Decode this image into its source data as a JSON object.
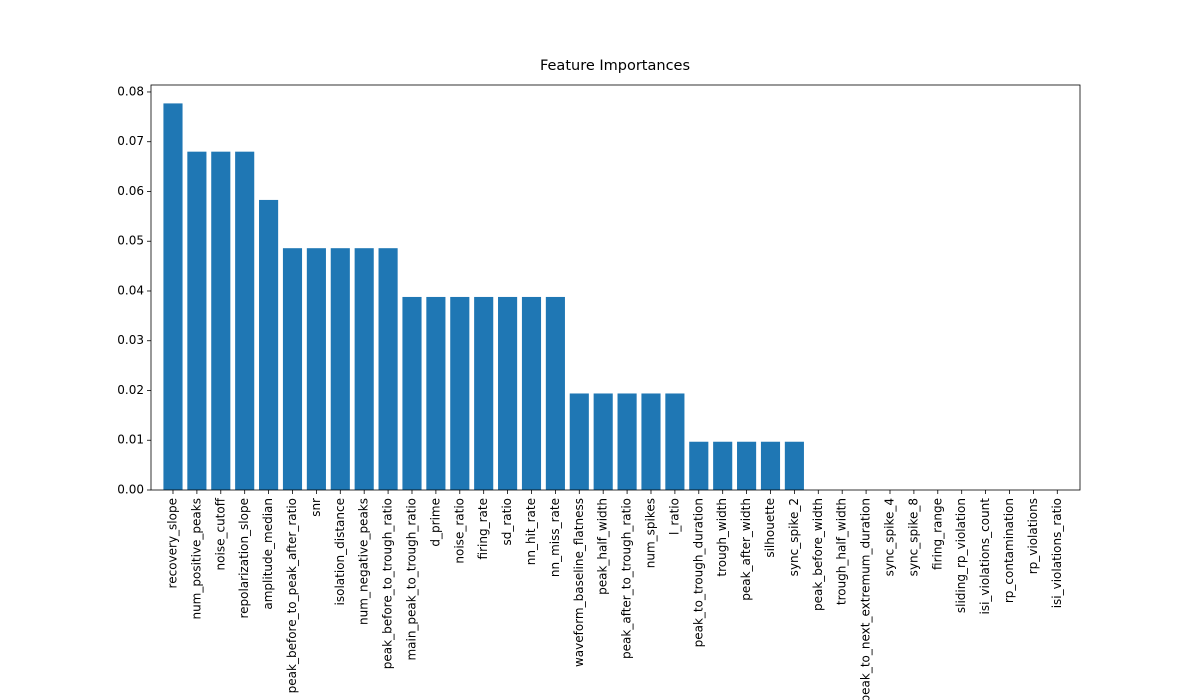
{
  "chart_data": {
    "type": "bar",
    "title": "Feature Importances",
    "categories": [
      "recovery_slope",
      "num_positive_peaks",
      "noise_cutoff",
      "repolarization_slope",
      "amplitude_median",
      "peak_before_to_peak_after_ratio",
      "snr",
      "isolation_distance",
      "num_negative_peaks",
      "peak_before_to_trough_ratio",
      "main_peak_to_trough_ratio",
      "d_prime",
      "noise_ratio",
      "firing_rate",
      "sd_ratio",
      "nn_hit_rate",
      "nn_miss_rate",
      "waveform_baseline_flatness",
      "peak_half_width",
      "peak_after_to_trough_ratio",
      "num_spikes",
      "l_ratio",
      "peak_to_trough_duration",
      "trough_width",
      "peak_after_width",
      "silhouette",
      "sync_spike_2",
      "peak_before_width",
      "trough_half_width",
      "peak_to_next_extremum_duration",
      "sync_spike_4",
      "sync_spike_8",
      "firing_range",
      "sliding_rp_violation",
      "isi_violations_count",
      "rp_contamination",
      "rp_violations",
      "isi_violations_ratio"
    ],
    "values": [
      0.0777,
      0.068,
      0.068,
      0.068,
      0.0583,
      0.0486,
      0.0486,
      0.0486,
      0.0486,
      0.0486,
      0.0388,
      0.0388,
      0.0388,
      0.0388,
      0.0388,
      0.0388,
      0.0388,
      0.0194,
      0.0194,
      0.0194,
      0.0194,
      0.0194,
      0.0097,
      0.0097,
      0.0097,
      0.0097,
      0.0097,
      0,
      0,
      0,
      0,
      0,
      0,
      0,
      0,
      0,
      0,
      0
    ],
    "color": "#1f77b4",
    "ylim": [
      0,
      0.0814
    ],
    "yticks": [
      {
        "value": 0,
        "label": "0.00"
      },
      {
        "value": 0.01,
        "label": "0.01"
      },
      {
        "value": 0.02,
        "label": "0.02"
      },
      {
        "value": 0.03,
        "label": "0.03"
      },
      {
        "value": 0.04,
        "label": "0.04"
      },
      {
        "value": 0.05,
        "label": "0.05"
      },
      {
        "value": 0.06,
        "label": "0.06"
      },
      {
        "value": 0.07,
        "label": "0.07"
      },
      {
        "value": 0.08,
        "label": "0.08"
      }
    ],
    "grid": false
  }
}
